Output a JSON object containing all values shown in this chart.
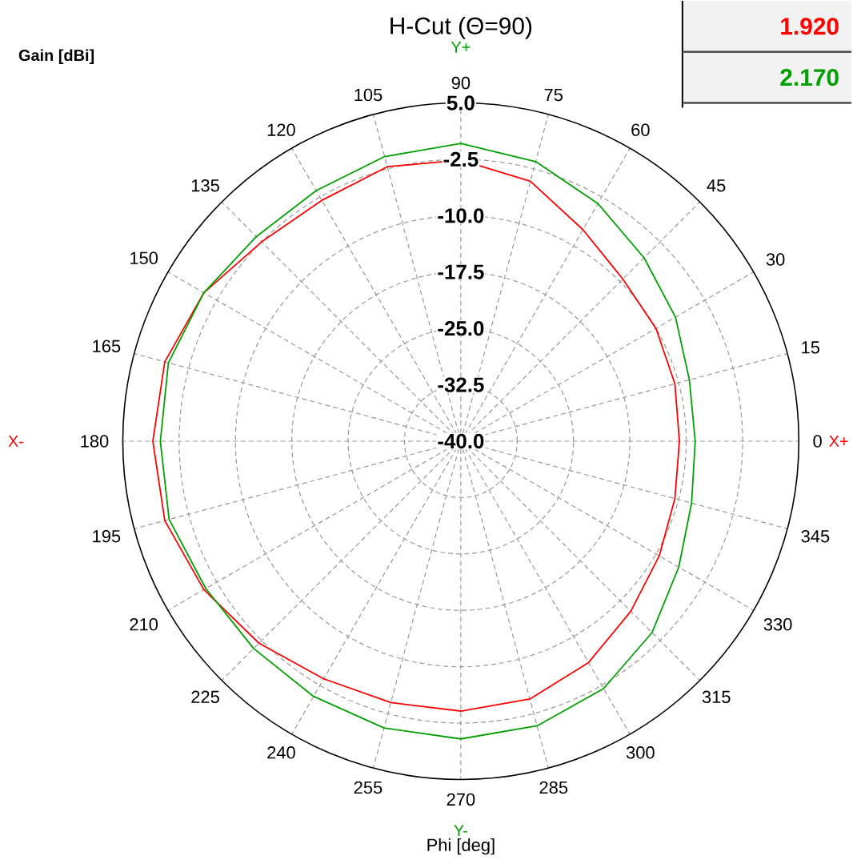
{
  "chart_data": {
    "type": "radar",
    "title": "H-Cut (Θ=90)",
    "xlabel": "Phi [deg]",
    "ylabel": "Gain [dBi]",
    "categories": [
      "90",
      "75",
      "60",
      "45",
      "30",
      "15",
      "0",
      "345",
      "330",
      "315",
      "300",
      "285",
      "270",
      "255",
      "240",
      "225",
      "210",
      "195",
      "180",
      "165",
      "150",
      "135",
      "120",
      "105"
    ],
    "series": [
      {
        "name": "1.920",
        "color": "#ff0000",
        "values": [
          -2.6,
          -4.2,
          -7.5,
          -9.5,
          -10,
          -10.5,
          -10.9,
          -10.5,
          -9.5,
          -8,
          -6,
          -4.5,
          -4.1,
          -4,
          -3.5,
          -2,
          -0.5,
          0.8,
          1,
          0.8,
          -0.5,
          -2.5,
          -3,
          -2.2
        ]
      },
      {
        "name": "2.170",
        "color": "#00a000",
        "values": [
          -0.4,
          -1.5,
          -3.5,
          -5.5,
          -7,
          -8.5,
          -8.8,
          -8.2,
          -6.5,
          -4,
          -2,
          -0.8,
          -0.4,
          -0.5,
          -0.8,
          -1,
          -0.8,
          0.2,
          0,
          0.3,
          -0.5,
          -1.5,
          -1.5,
          -0.8
        ]
      }
    ],
    "ylim": [
      -40,
      5
    ],
    "yticks": [
      {
        "value": -40,
        "label": "-40.0"
      },
      -32.5,
      {
        "value": -25,
        "label": "-25.0"
      },
      -17.5,
      {
        "value": -10,
        "label": "-10.0"
      },
      -2.5,
      {
        "value": 5,
        "label": "5.0"
      }
    ],
    "grid": true,
    "legend": "top right",
    "annotations": [
      "Y+",
      "Y-",
      "X-",
      "X+"
    ]
  }
}
